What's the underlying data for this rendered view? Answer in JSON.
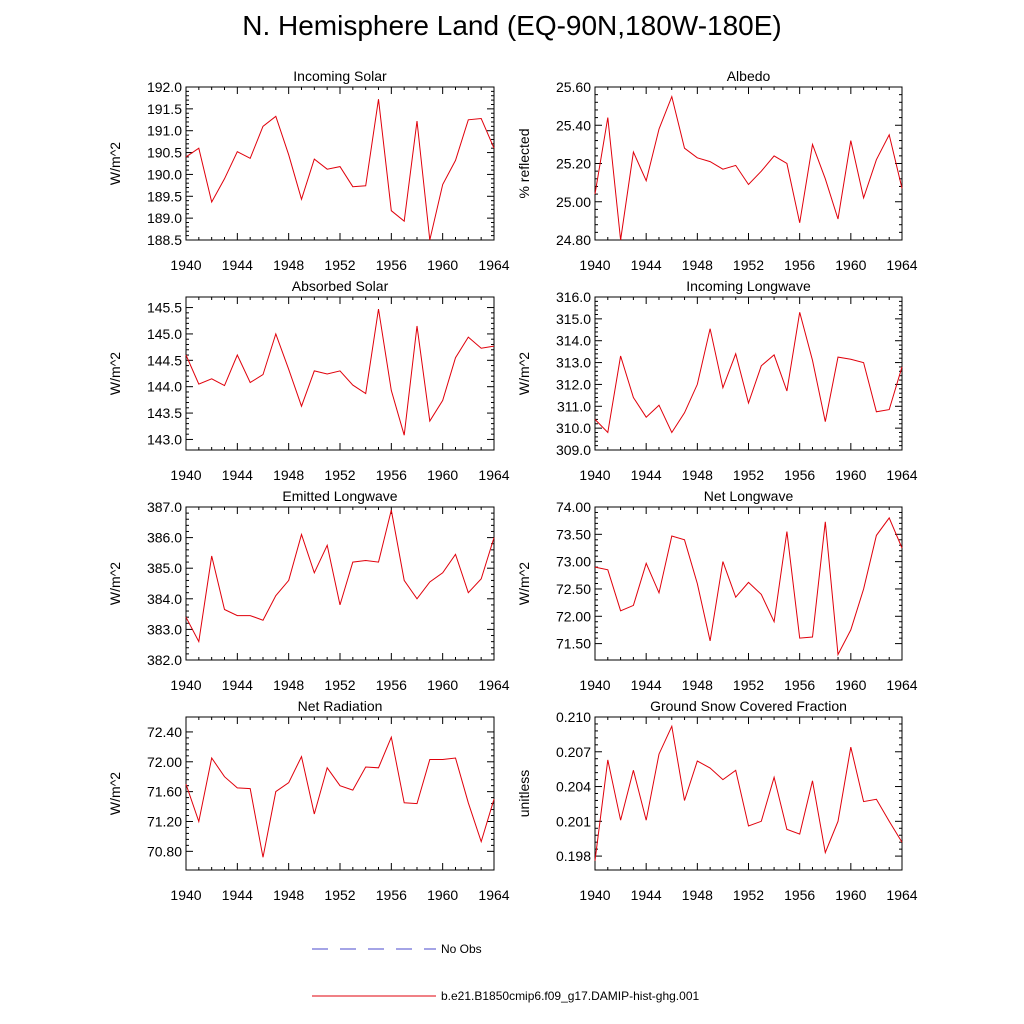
{
  "page": {
    "title": "N. Hemisphere Land (EQ-90N,180W-180E)"
  },
  "legend": {
    "obs_label": "No Obs",
    "model_label": "b.e21.B1850cmip6.f09_g17.DAMIP-hist-ghg.001",
    "obs_color": "#4a4acc",
    "model_color": "#e0000b"
  },
  "colors": {
    "line": "#e0000b",
    "axis": "#000000"
  },
  "chart_data": [
    {
      "type": "line",
      "title": "Incoming Solar",
      "ylabel": "W/m^2",
      "x": [
        1940,
        1941,
        1942,
        1943,
        1944,
        1945,
        1946,
        1947,
        1948,
        1949,
        1950,
        1951,
        1952,
        1953,
        1954,
        1955,
        1956,
        1957,
        1958,
        1959,
        1960,
        1961,
        1962,
        1963,
        1964
      ],
      "ylim": [
        188.5,
        192.0
      ],
      "yticks": [
        188.5,
        189.0,
        189.5,
        190.0,
        190.5,
        191.0,
        191.5,
        192.0
      ],
      "yticklabels": [
        "188.5",
        "189.0",
        "189.5",
        "190.0",
        "190.5",
        "191.0",
        "191.5",
        "192.0"
      ],
      "xlim": [
        1940,
        1964
      ],
      "xticks": [
        "1940",
        "1944",
        "1948",
        "1952",
        "1956",
        "1960",
        "1964"
      ],
      "series": [
        {
          "values": [
            190.4,
            190.6,
            189.37,
            189.9,
            190.52,
            190.37,
            191.1,
            191.33,
            190.45,
            189.43,
            190.35,
            190.12,
            190.18,
            189.72,
            189.74,
            191.72,
            189.17,
            188.93,
            191.22,
            188.5,
            189.77,
            190.32,
            191.25,
            191.28,
            190.6
          ]
        }
      ]
    },
    {
      "type": "line",
      "title": "Albedo",
      "ylabel": "% reflected",
      "x": [
        1940,
        1941,
        1942,
        1943,
        1944,
        1945,
        1946,
        1947,
        1948,
        1949,
        1950,
        1951,
        1952,
        1953,
        1954,
        1955,
        1956,
        1957,
        1958,
        1959,
        1960,
        1961,
        1962,
        1963,
        1964
      ],
      "ylim": [
        24.8,
        25.6
      ],
      "yticks": [
        24.8,
        25.0,
        25.2,
        25.4,
        25.6
      ],
      "yticklabels": [
        "24.80",
        "25.00",
        "25.20",
        "25.40",
        "25.60"
      ],
      "xlim": [
        1940,
        1964
      ],
      "xticks": [
        "1940",
        "1944",
        "1948",
        "1952",
        "1956",
        "1960",
        "1964"
      ],
      "series": [
        {
          "values": [
            25.04,
            25.44,
            24.8,
            25.26,
            25.11,
            25.38,
            25.55,
            25.28,
            25.23,
            25.21,
            25.17,
            25.19,
            25.09,
            25.16,
            25.24,
            25.2,
            24.89,
            25.3,
            25.12,
            24.91,
            25.32,
            25.02,
            25.22,
            25.35,
            25.07
          ]
        }
      ]
    },
    {
      "type": "line",
      "title": "Absorbed Solar",
      "ylabel": "W/m^2",
      "x": [
        1940,
        1941,
        1942,
        1943,
        1944,
        1945,
        1946,
        1947,
        1948,
        1949,
        1950,
        1951,
        1952,
        1953,
        1954,
        1955,
        1956,
        1957,
        1958,
        1959,
        1960,
        1961,
        1962,
        1963,
        1964
      ],
      "ylim": [
        142.8,
        145.7
      ],
      "yticks": [
        143.0,
        143.5,
        144.0,
        144.5,
        145.0,
        145.5
      ],
      "yticklabels": [
        "143.0",
        "143.5",
        "144.0",
        "144.5",
        "145.0",
        "145.5"
      ],
      "xlim": [
        1940,
        1964
      ],
      "xticks": [
        "1940",
        "1944",
        "1948",
        "1952",
        "1956",
        "1960",
        "1964"
      ],
      "series": [
        {
          "values": [
            144.6,
            144.05,
            144.15,
            144.02,
            144.6,
            144.08,
            144.23,
            145.0,
            144.33,
            143.63,
            144.3,
            144.24,
            144.3,
            144.03,
            143.87,
            145.47,
            143.93,
            143.08,
            145.15,
            143.35,
            143.74,
            144.55,
            144.94,
            144.73,
            144.77
          ]
        }
      ]
    },
    {
      "type": "line",
      "title": "Incoming Longwave",
      "ylabel": "W/m^2",
      "x": [
        1940,
        1941,
        1942,
        1943,
        1944,
        1945,
        1946,
        1947,
        1948,
        1949,
        1950,
        1951,
        1952,
        1953,
        1954,
        1955,
        1956,
        1957,
        1958,
        1959,
        1960,
        1961,
        1962,
        1963,
        1964
      ],
      "ylim": [
        309.0,
        316.0
      ],
      "yticks": [
        309,
        310,
        311,
        312,
        313,
        314,
        315,
        316
      ],
      "yticklabels": [
        "309.0",
        "310.0",
        "311.0",
        "312.0",
        "313.0",
        "314.0",
        "315.0",
        "316.0"
      ],
      "xlim": [
        1940,
        1964
      ],
      "xticks": [
        "1940",
        "1944",
        "1948",
        "1952",
        "1956",
        "1960",
        "1964"
      ],
      "series": [
        {
          "values": [
            310.4,
            309.8,
            313.3,
            311.4,
            310.5,
            311.05,
            309.8,
            310.7,
            312.0,
            314.55,
            311.85,
            313.4,
            311.15,
            312.85,
            313.35,
            311.7,
            315.3,
            313.1,
            310.3,
            313.25,
            313.15,
            313.0,
            310.75,
            310.85,
            312.8
          ]
        }
      ]
    },
    {
      "type": "line",
      "title": "Emitted Longwave",
      "ylabel": "W/m^2",
      "x": [
        1940,
        1941,
        1942,
        1943,
        1944,
        1945,
        1946,
        1947,
        1948,
        1949,
        1950,
        1951,
        1952,
        1953,
        1954,
        1955,
        1956,
        1957,
        1958,
        1959,
        1960,
        1961,
        1962,
        1963,
        1964
      ],
      "ylim": [
        382.0,
        387.0
      ],
      "yticks": [
        382,
        383,
        384,
        385,
        386,
        387
      ],
      "yticklabels": [
        "382.0",
        "383.0",
        "384.0",
        "385.0",
        "386.0",
        "387.0"
      ],
      "xlim": [
        1940,
        1964
      ],
      "xticks": [
        "1940",
        "1944",
        "1948",
        "1952",
        "1956",
        "1960",
        "1964"
      ],
      "series": [
        {
          "values": [
            383.4,
            382.6,
            385.4,
            383.65,
            383.45,
            383.45,
            383.3,
            384.1,
            384.6,
            386.1,
            384.85,
            385.75,
            383.8,
            385.2,
            385.25,
            385.2,
            386.9,
            384.6,
            384.0,
            384.55,
            384.85,
            385.45,
            384.2,
            384.65,
            386.0
          ]
        }
      ]
    },
    {
      "type": "line",
      "title": "Net Longwave",
      "ylabel": "W/m^2",
      "x": [
        1940,
        1941,
        1942,
        1943,
        1944,
        1945,
        1946,
        1947,
        1948,
        1949,
        1950,
        1951,
        1952,
        1953,
        1954,
        1955,
        1956,
        1957,
        1958,
        1959,
        1960,
        1961,
        1962,
        1963,
        1964
      ],
      "ylim": [
        71.2,
        74.0
      ],
      "yticks": [
        71.5,
        72.0,
        72.5,
        73.0,
        73.5,
        74.0
      ],
      "yticklabels": [
        "71.50",
        "72.00",
        "72.50",
        "73.00",
        "73.50",
        "74.00"
      ],
      "xlim": [
        1940,
        1964
      ],
      "xticks": [
        "1940",
        "1944",
        "1948",
        "1952",
        "1956",
        "1960",
        "1964"
      ],
      "series": [
        {
          "values": [
            72.9,
            72.85,
            72.1,
            72.2,
            72.97,
            72.43,
            73.47,
            73.4,
            72.6,
            71.55,
            73.0,
            72.35,
            72.62,
            72.4,
            71.9,
            73.55,
            71.6,
            71.62,
            73.73,
            71.3,
            71.75,
            72.5,
            73.48,
            73.8,
            73.25
          ]
        }
      ]
    },
    {
      "type": "line",
      "title": "Net Radiation",
      "ylabel": "W/m^2",
      "x": [
        1940,
        1941,
        1942,
        1943,
        1944,
        1945,
        1946,
        1947,
        1948,
        1949,
        1950,
        1951,
        1952,
        1953,
        1954,
        1955,
        1956,
        1957,
        1958,
        1959,
        1960,
        1961,
        1962,
        1963,
        1964
      ],
      "ylim": [
        70.55,
        72.6
      ],
      "yticks": [
        70.8,
        71.2,
        71.6,
        72.0,
        72.4
      ],
      "yticklabels": [
        "70.80",
        "71.20",
        "71.60",
        "72.00",
        "72.40"
      ],
      "xlim": [
        1940,
        1964
      ],
      "xticks": [
        "1940",
        "1944",
        "1948",
        "1952",
        "1956",
        "1960",
        "1964"
      ],
      "series": [
        {
          "values": [
            71.7,
            71.2,
            72.05,
            71.8,
            71.65,
            71.64,
            70.72,
            71.6,
            71.72,
            72.07,
            71.3,
            71.92,
            71.68,
            71.62,
            71.93,
            71.92,
            72.33,
            71.45,
            71.44,
            72.03,
            72.03,
            72.05,
            71.45,
            70.93,
            71.5
          ]
        }
      ]
    },
    {
      "type": "line",
      "title": "Ground Snow Covered Fraction",
      "ylabel": "unitless",
      "x": [
        1940,
        1941,
        1942,
        1943,
        1944,
        1945,
        1946,
        1947,
        1948,
        1949,
        1950,
        1951,
        1952,
        1953,
        1954,
        1955,
        1956,
        1957,
        1958,
        1959,
        1960,
        1961,
        1962,
        1963,
        1964
      ],
      "ylim": [
        0.1968,
        0.21
      ],
      "yticks": [
        0.198,
        0.201,
        0.204,
        0.207,
        0.21
      ],
      "yticklabels": [
        "0.198",
        "0.201",
        "0.204",
        "0.207",
        "0.210"
      ],
      "xlim": [
        1940,
        1964
      ],
      "xticks": [
        "1940",
        "1944",
        "1948",
        "1952",
        "1956",
        "1960",
        "1964"
      ],
      "series": [
        {
          "values": [
            0.1976,
            0.2063,
            0.2011,
            0.2054,
            0.2011,
            0.2068,
            0.2092,
            0.2028,
            0.2062,
            0.2056,
            0.2046,
            0.2054,
            0.2006,
            0.201,
            0.2048,
            0.2003,
            0.1999,
            0.2045,
            0.1983,
            0.201,
            0.2074,
            0.2027,
            0.2029,
            0.201,
            0.1992
          ]
        }
      ]
    }
  ]
}
